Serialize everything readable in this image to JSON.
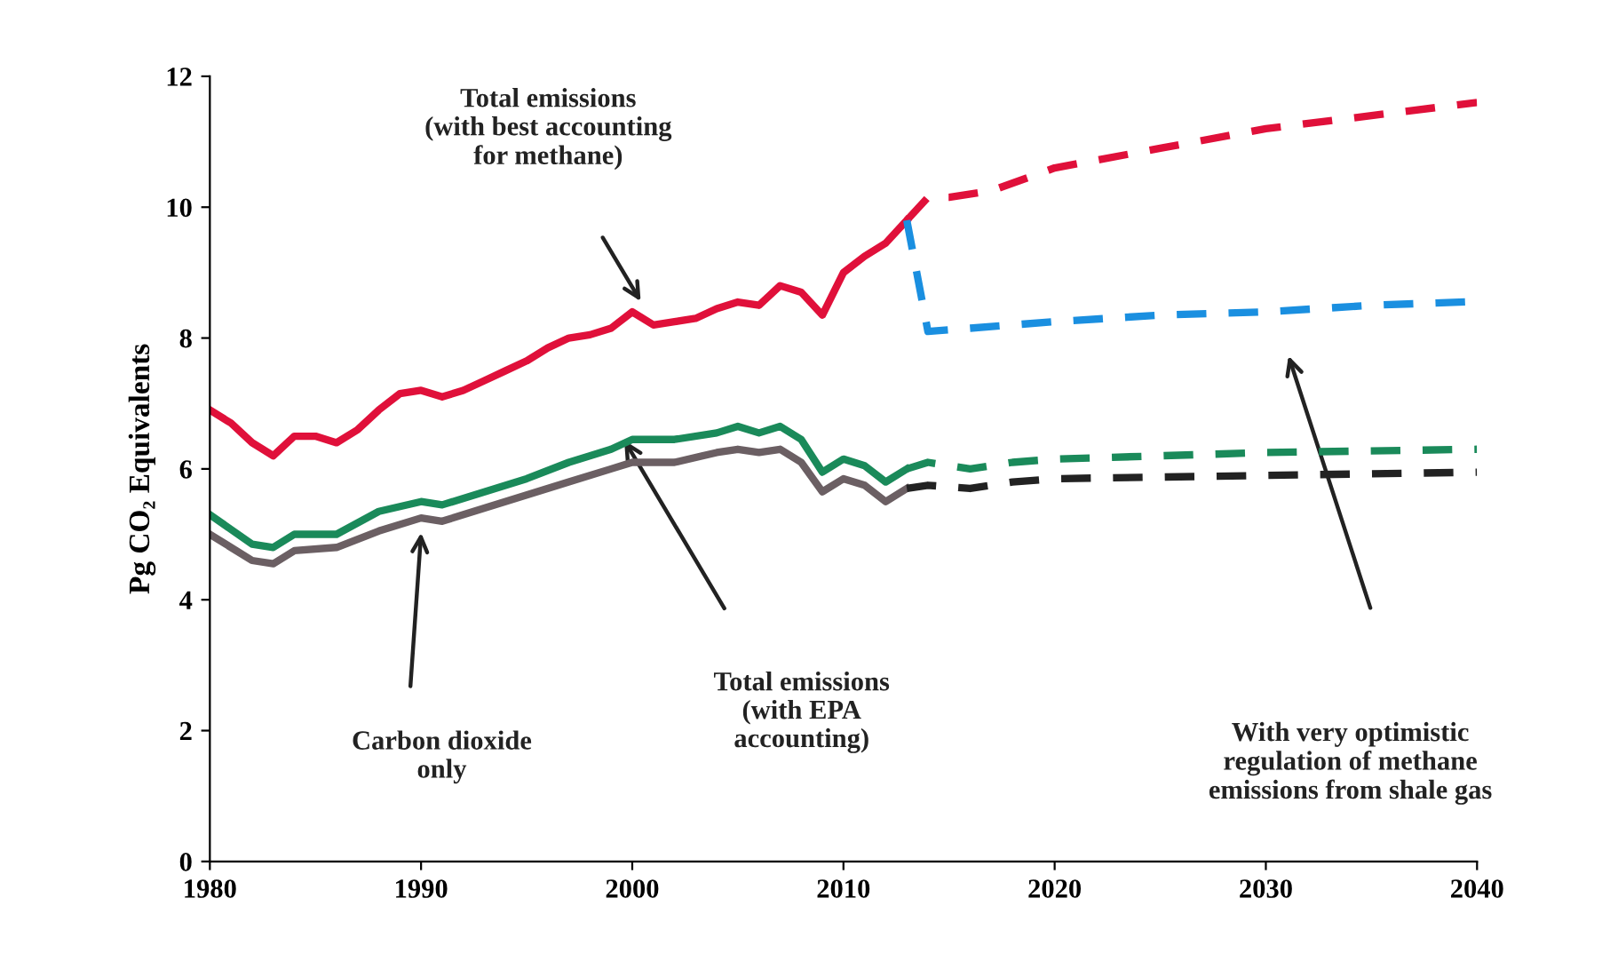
{
  "chart_data": {
    "type": "line",
    "ylabel": "Pg CO₂ Equivalents",
    "xlim": [
      1980,
      2040
    ],
    "xticks": [
      1980,
      1990,
      2000,
      2010,
      2020,
      2030,
      2040
    ],
    "ylim": [
      0,
      12
    ],
    "yticks": [
      0,
      2,
      4,
      6,
      8,
      10,
      12
    ],
    "grid": false,
    "legend": false,
    "marker": "none",
    "series": [
      {
        "color": "#e0103a",
        "line_style": "solid",
        "x": [
          1980,
          1981,
          1982,
          1983,
          1984,
          1985,
          1986,
          1987,
          1988,
          1989,
          1990,
          1991,
          1992,
          1993,
          1994,
          1995,
          1996,
          1997,
          1998,
          1999,
          2000,
          2001,
          2002,
          2003,
          2004,
          2005,
          2006,
          2007,
          2008,
          2009,
          2010,
          2011,
          2012,
          2013
        ],
        "values": [
          6.9,
          6.7,
          6.4,
          6.2,
          6.5,
          6.5,
          6.4,
          6.6,
          6.9,
          7.15,
          7.2,
          7.1,
          7.2,
          7.35,
          7.5,
          7.65,
          7.85,
          8.0,
          8.05,
          8.15,
          8.4,
          8.2,
          8.25,
          8.3,
          8.45,
          8.55,
          8.5,
          8.8,
          8.7,
          8.35,
          9.0,
          9.25,
          9.45,
          9.8
        ]
      },
      {
        "color": "#1a8a5a",
        "line_style": "solid",
        "x": [
          1980,
          1982,
          1983,
          1984,
          1986,
          1988,
          1990,
          1991,
          1993,
          1995,
          1997,
          1999,
          2000,
          2002,
          2004,
          2005,
          2006,
          2007,
          2008,
          2009,
          2010,
          2011,
          2012,
          2013
        ],
        "values": [
          5.3,
          4.85,
          4.8,
          5.0,
          5.0,
          5.35,
          5.5,
          5.45,
          5.65,
          5.85,
          6.1,
          6.3,
          6.45,
          6.45,
          6.55,
          6.65,
          6.55,
          6.65,
          6.45,
          5.95,
          6.15,
          6.05,
          5.8,
          6.0
        ]
      },
      {
        "color": "#6b5f63",
        "line_style": "solid",
        "x": [
          1980,
          1982,
          1983,
          1984,
          1986,
          1988,
          1990,
          1991,
          1993,
          1995,
          1997,
          1999,
          2000,
          2002,
          2004,
          2005,
          2006,
          2007,
          2008,
          2009,
          2010,
          2011,
          2012,
          2013
        ],
        "values": [
          5.0,
          4.6,
          4.55,
          4.75,
          4.8,
          5.05,
          5.25,
          5.2,
          5.4,
          5.6,
          5.8,
          6.0,
          6.1,
          6.1,
          6.25,
          6.3,
          6.25,
          6.3,
          6.1,
          5.65,
          5.85,
          5.75,
          5.5,
          5.7
        ]
      },
      {
        "color": "#e0103a",
        "line_style": "dashed",
        "x": [
          2013,
          2014,
          2015,
          2017,
          2020,
          2025,
          2030,
          2035,
          2040
        ],
        "values": [
          9.8,
          10.15,
          10.15,
          10.25,
          10.6,
          10.9,
          11.2,
          11.4,
          11.6
        ]
      },
      {
        "color": "#1a8fe0",
        "line_style": "dashed",
        "x": [
          2013,
          2014,
          2016,
          2020,
          2025,
          2030,
          2035,
          2040
        ],
        "values": [
          9.8,
          8.1,
          8.15,
          8.25,
          8.35,
          8.4,
          8.5,
          8.56
        ]
      },
      {
        "color": "#1a8a5a",
        "line_style": "dashed",
        "x": [
          2013,
          2014,
          2016,
          2018,
          2020,
          2025,
          2030,
          2040
        ],
        "values": [
          6.0,
          6.1,
          6.0,
          6.1,
          6.15,
          6.2,
          6.25,
          6.3
        ]
      },
      {
        "color": "#222222",
        "line_style": "dashed",
        "x": [
          2013,
          2014,
          2016,
          2018,
          2020,
          2030,
          2040
        ],
        "values": [
          5.7,
          5.75,
          5.7,
          5.8,
          5.85,
          5.9,
          5.95
        ]
      }
    ],
    "annotations": [
      "Total emissions\n(with best accounting\nfor methane)",
      "Carbon dioxide\nonly",
      "Total emissions\n(with EPA\naccounting)",
      "With very optimistic\nregulation of methane\nemissions from shale gas"
    ]
  }
}
